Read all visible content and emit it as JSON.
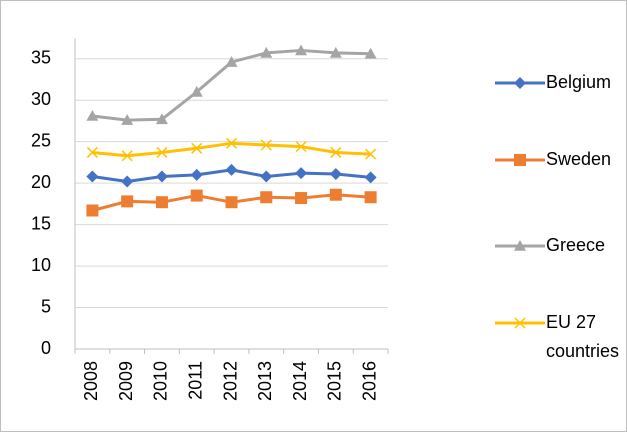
{
  "chart_data": {
    "type": "line",
    "categories": [
      "2008",
      "2009",
      "2010",
      "2011",
      "2012",
      "2013",
      "2014",
      "2015",
      "2016"
    ],
    "series": [
      {
        "name": "Belgium",
        "color": "#4472c4",
        "marker": "diamond",
        "values": [
          20.8,
          20.2,
          20.8,
          21.0,
          21.6,
          20.8,
          21.2,
          21.1,
          20.7
        ]
      },
      {
        "name": "Sweden",
        "color": "#ed7d31",
        "marker": "square",
        "values": [
          16.7,
          17.8,
          17.7,
          18.5,
          17.7,
          18.3,
          18.2,
          18.6,
          18.3
        ]
      },
      {
        "name": "Greece",
        "color": "#a5a5a5",
        "marker": "triangle",
        "values": [
          28.1,
          27.6,
          27.7,
          31.0,
          34.6,
          35.7,
          36.0,
          35.7,
          35.6
        ]
      },
      {
        "name": "EU 27 countries",
        "color": "#ffc000",
        "marker": "x",
        "values": [
          23.7,
          23.3,
          23.7,
          24.2,
          24.8,
          24.6,
          24.4,
          23.7,
          23.5
        ]
      }
    ],
    "ylim": [
      0,
      37.5
    ],
    "yticks": [
      0,
      5,
      10,
      15,
      20,
      25,
      30,
      35
    ],
    "grid": true,
    "legend": "right"
  }
}
